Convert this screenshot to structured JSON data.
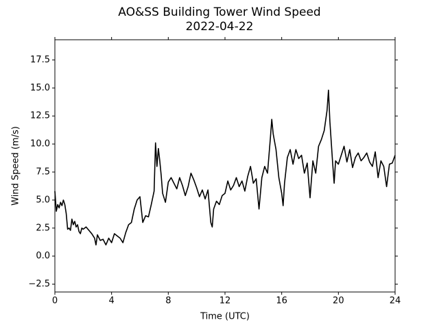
{
  "chart_data": {
    "type": "line",
    "title": "AO&SS Building Tower Wind Speed",
    "subtitle": "2022-04-22",
    "x_label": "Time (UTC)",
    "y_label": "Wind Speed (m/s)",
    "xlim": [
      0,
      24
    ],
    "xticks": [
      0,
      4,
      8,
      12,
      16,
      20,
      24
    ],
    "ylim": [
      -3.2,
      19.3
    ],
    "yticks": [
      {
        "value": -2.5,
        "label": "−2.5"
      },
      {
        "value": 0,
        "label": "0.0"
      },
      2.5,
      {
        "value": 5,
        "label": "5.0"
      },
      7.5,
      {
        "value": 10,
        "label": "10.0"
      },
      12.5,
      {
        "value": 15,
        "label": "15.0"
      },
      17.5
    ],
    "grid": false,
    "series": [
      {
        "name": "Wind Speed",
        "color": "#000000",
        "x": [
          0,
          0.1,
          0.2,
          0.3,
          0.4,
          0.5,
          0.6,
          0.7,
          0.8,
          0.9,
          1.0,
          1.1,
          1.2,
          1.3,
          1.4,
          1.5,
          1.6,
          1.7,
          1.8,
          1.9,
          2.0,
          2.2,
          2.4,
          2.6,
          2.8,
          2.9,
          3.0,
          3.2,
          3.4,
          3.6,
          3.8,
          4.0,
          4.2,
          4.4,
          4.6,
          4.8,
          5.0,
          5.2,
          5.4,
          5.6,
          5.8,
          6.0,
          6.2,
          6.4,
          6.6,
          6.8,
          7.0,
          7.1,
          7.2,
          7.3,
          7.4,
          7.5,
          7.6,
          7.8,
          8.0,
          8.2,
          8.4,
          8.6,
          8.8,
          9.0,
          9.2,
          9.4,
          9.6,
          9.8,
          10.0,
          10.2,
          10.4,
          10.6,
          10.8,
          11.0,
          11.1,
          11.2,
          11.4,
          11.6,
          11.8,
          12.0,
          12.2,
          12.4,
          12.6,
          12.8,
          13.0,
          13.2,
          13.4,
          13.6,
          13.8,
          14.0,
          14.2,
          14.4,
          14.6,
          14.8,
          15.0,
          15.2,
          15.3,
          15.4,
          15.6,
          15.8,
          16.0,
          16.1,
          16.2,
          16.4,
          16.6,
          16.8,
          17.0,
          17.2,
          17.4,
          17.6,
          17.8,
          18.0,
          18.2,
          18.4,
          18.6,
          18.8,
          19.0,
          19.2,
          19.3,
          19.4,
          19.6,
          19.7,
          19.8,
          20.0,
          20.2,
          20.4,
          20.6,
          20.8,
          21.0,
          21.2,
          21.4,
          21.6,
          21.8,
          22.0,
          22.2,
          22.4,
          22.6,
          22.8,
          23.0,
          23.2,
          23.4,
          23.6,
          23.8,
          24.0
        ],
        "values": [
          5.8,
          4.0,
          4.6,
          4.3,
          4.8,
          4.5,
          5.0,
          4.6,
          3.8,
          2.4,
          2.5,
          2.3,
          3.3,
          2.8,
          3.1,
          2.6,
          2.8,
          2.2,
          2.0,
          2.5,
          2.4,
          2.6,
          2.3,
          2.0,
          1.6,
          1.0,
          1.9,
          1.4,
          1.5,
          1.0,
          1.6,
          1.2,
          2.0,
          1.8,
          1.6,
          1.2,
          2.1,
          2.8,
          3.0,
          4.2,
          5.0,
          5.3,
          3.0,
          3.6,
          3.5,
          4.6,
          5.8,
          10.1,
          8.0,
          9.6,
          8.5,
          7.2,
          5.6,
          4.8,
          6.6,
          7.0,
          6.5,
          6.0,
          7.0,
          6.3,
          5.4,
          6.2,
          7.4,
          6.8,
          6.1,
          5.3,
          5.9,
          5.1,
          5.9,
          3.0,
          2.6,
          4.2,
          4.9,
          4.6,
          5.4,
          5.6,
          6.7,
          5.9,
          6.3,
          7.0,
          6.2,
          6.7,
          5.8,
          7.1,
          8.0,
          6.5,
          6.9,
          4.2,
          7.0,
          8.0,
          7.4,
          10.5,
          12.2,
          10.9,
          9.5,
          7.0,
          5.6,
          4.5,
          6.5,
          8.8,
          9.5,
          8.2,
          9.5,
          8.7,
          9.0,
          7.4,
          8.3,
          5.2,
          8.5,
          7.4,
          9.8,
          10.4,
          11.2,
          13.0,
          14.8,
          12.0,
          8.2,
          6.5,
          8.5,
          8.2,
          9.0,
          9.8,
          8.4,
          9.5,
          7.9,
          8.8,
          9.2,
          8.5,
          8.8,
          9.2,
          8.4,
          8.0,
          9.3,
          7.0,
          8.5,
          8.0,
          6.2,
          8.2,
          8.3,
          9.0
        ]
      }
    ]
  }
}
